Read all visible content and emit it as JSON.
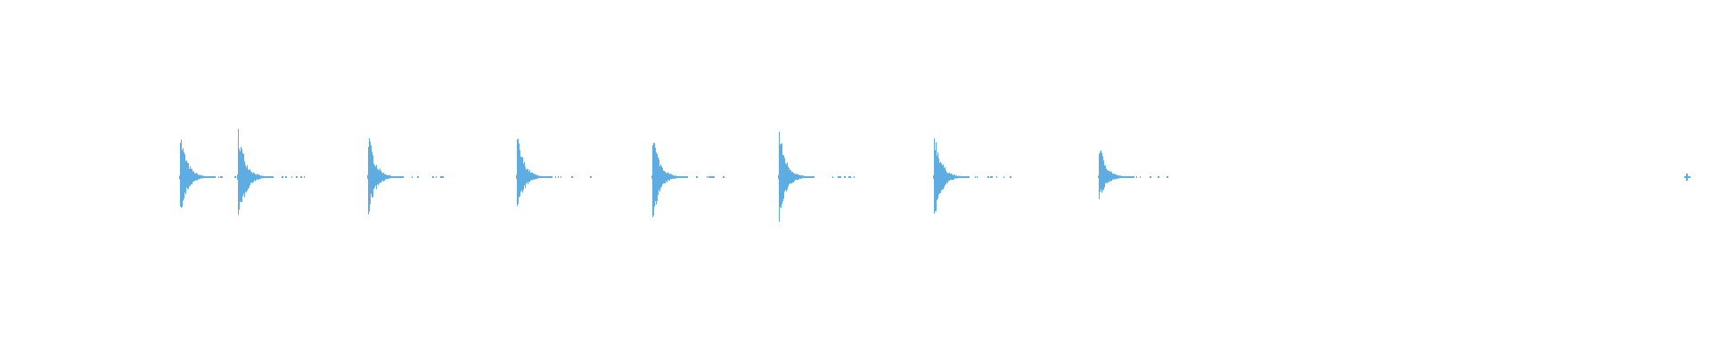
{
  "waveform": {
    "color": "#5dade2",
    "background": "#ffffff",
    "amplitude_range": [
      -1,
      1
    ],
    "bursts": [
      {
        "position": 0.105,
        "peak": 0.27,
        "asym": 0.9
      },
      {
        "position": 0.139,
        "peak": 0.3,
        "asym": 1.0
      },
      {
        "position": 0.215,
        "peak": 0.27,
        "asym": 0.85
      },
      {
        "position": 0.302,
        "peak": 0.26,
        "asym": 0.8
      },
      {
        "position": 0.381,
        "peak": 0.28,
        "asym": 0.95
      },
      {
        "position": 0.455,
        "peak": 0.29,
        "asym": 0.95
      },
      {
        "position": 0.546,
        "peak": 0.28,
        "asym": 0.95
      },
      {
        "position": 0.642,
        "peak": 0.21,
        "asym": 0.7
      },
      {
        "position": 0.986,
        "peak": 0.02,
        "asym": 1.0
      }
    ]
  }
}
